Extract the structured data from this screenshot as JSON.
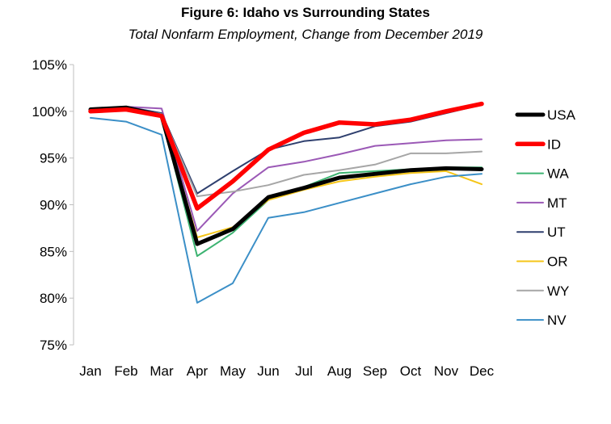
{
  "chart_data": {
    "type": "line",
    "title": "Figure 6: Idaho vs Surrounding States",
    "subtitle": "Total Nonfarm Employment, Change from December 2019",
    "xlabel": "",
    "ylabel": "",
    "categories": [
      "Jan",
      "Feb",
      "Mar",
      "Apr",
      "May",
      "Jun",
      "Jul",
      "Aug",
      "Sep",
      "Oct",
      "Nov",
      "Dec"
    ],
    "ylim": [
      75,
      105
    ],
    "yticks": [
      75,
      80,
      85,
      90,
      95,
      100,
      105
    ],
    "ytick_labels": [
      "75%",
      "80%",
      "85%",
      "90%",
      "95%",
      "100%",
      "105%"
    ],
    "y_unit": "%",
    "legend_position": "right",
    "series": [
      {
        "name": "USA",
        "color": "#000000",
        "values": [
          100.2,
          100.4,
          99.5,
          85.8,
          87.4,
          90.8,
          91.8,
          92.9,
          93.3,
          93.7,
          93.9,
          93.8
        ]
      },
      {
        "name": "ID",
        "color": "#ff0000",
        "values": [
          100.0,
          100.2,
          99.5,
          89.6,
          92.5,
          95.9,
          97.7,
          98.8,
          98.6,
          99.1,
          100.0,
          100.8
        ]
      },
      {
        "name": "WA",
        "color": "#3cb371",
        "values": [
          100.1,
          100.3,
          99.4,
          84.5,
          87.0,
          90.5,
          91.9,
          93.4,
          93.6,
          93.8,
          94.0,
          94.0
        ]
      },
      {
        "name": "MT",
        "color": "#9b59b6",
        "values": [
          100.2,
          100.5,
          100.3,
          87.2,
          91.2,
          94.0,
          94.6,
          95.4,
          96.3,
          96.6,
          96.9,
          97.0
        ]
      },
      {
        "name": "UT",
        "color": "#2e3f6e",
        "values": [
          100.3,
          100.5,
          99.8,
          91.2,
          93.6,
          95.9,
          96.8,
          97.2,
          98.4,
          98.9,
          99.8,
          100.7
        ]
      },
      {
        "name": "OR",
        "color": "#f5c518",
        "values": [
          100.0,
          100.1,
          99.6,
          86.5,
          87.6,
          90.5,
          91.6,
          92.5,
          93.0,
          93.4,
          93.6,
          92.2
        ]
      },
      {
        "name": "WY",
        "color": "#a6a6a6",
        "values": [
          100.1,
          100.3,
          99.7,
          90.9,
          91.4,
          92.1,
          93.2,
          93.7,
          94.3,
          95.5,
          95.5,
          95.7
        ]
      },
      {
        "name": "NV",
        "color": "#3b8fc7",
        "values": [
          99.3,
          98.9,
          97.5,
          79.5,
          81.6,
          88.6,
          89.2,
          90.2,
          91.2,
          92.2,
          93.0,
          93.3
        ]
      }
    ]
  }
}
